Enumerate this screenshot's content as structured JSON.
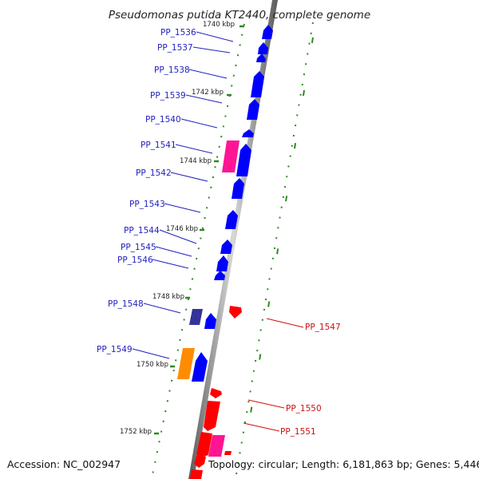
{
  "title": "Pseudomonas putida KT2440, complete genome",
  "footer": {
    "accession": "Accession: NC_002947",
    "topology": "Topology: circular; Length: 6,181,863 bp; Genes: 5,446"
  },
  "ticks": [
    "1740 kbp",
    "1742 kbp",
    "1744 kbp",
    "1746 kbp",
    "1748 kbp",
    "1750 kbp",
    "1752 kbp"
  ],
  "forward_genes": [
    {
      "id": "PP_1536",
      "color": "#0000ff"
    },
    {
      "id": "PP_1537",
      "color": "#0000ff"
    },
    {
      "id": "PP_1538",
      "color": "#0000ff"
    },
    {
      "id": "PP_1539",
      "color": "#0000ff"
    },
    {
      "id": "PP_1540",
      "color": "#0000ff"
    },
    {
      "id": "PP_1541",
      "color": "#0000ff"
    },
    {
      "id": "PP_1542",
      "color": "#0000ff"
    },
    {
      "id": "PP_1543",
      "color": "#0000ff"
    },
    {
      "id": "PP_1544",
      "color": "#0000ff"
    },
    {
      "id": "PP_1545",
      "color": "#0000ff"
    },
    {
      "id": "PP_1546",
      "color": "#0000ff"
    },
    {
      "id": "PP_1548",
      "color": "#0000ff"
    },
    {
      "id": "PP_1549",
      "color": "#0000ff"
    }
  ],
  "reverse_genes": [
    {
      "id": "PP_1547",
      "color": "#ff0000"
    },
    {
      "id": "PP_1550",
      "color": "#ff0000"
    },
    {
      "id": "PP_1551",
      "color": "#ff0000"
    }
  ],
  "feature_colors": {
    "forward_cds": "#0000ff",
    "reverse_cds": "#ff0000",
    "feature_pink": "#ff1493",
    "feature_navy": "#333399",
    "feature_orange": "#ff8c00",
    "backbone": "#888888",
    "tick_marks": "#2e8b22"
  }
}
